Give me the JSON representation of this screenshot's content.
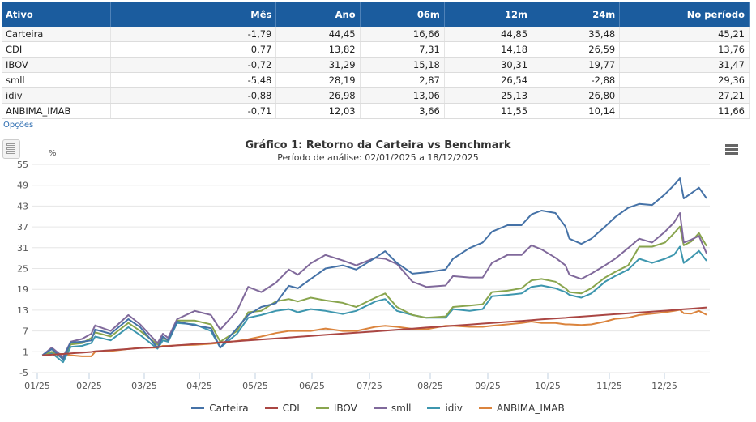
{
  "table": {
    "headers": [
      "Ativo",
      "Mês",
      "Ano",
      "06m",
      "12m",
      "24m",
      "No período"
    ],
    "rows": [
      [
        "Carteira",
        "-1,79",
        "44,45",
        "16,66",
        "44,85",
        "35,48",
        "45,21"
      ],
      [
        "CDI",
        "0,77",
        "13,82",
        "7,31",
        "14,18",
        "26,59",
        "13,76"
      ],
      [
        "IBOV",
        "-0,72",
        "31,29",
        "15,18",
        "30,31",
        "19,77",
        "31,47"
      ],
      [
        "smll",
        "-5,48",
        "28,19",
        "2,87",
        "26,54",
        "-2,88",
        "29,36"
      ],
      [
        "idiv",
        "-0,88",
        "26,98",
        "13,06",
        "25,13",
        "26,80",
        "27,21"
      ],
      [
        "ANBIMA_IMAB",
        "-0,71",
        "12,03",
        "3,66",
        "11,55",
        "10,14",
        "11,66"
      ]
    ]
  },
  "options_link": "Opções",
  "icons": {
    "legend_toggle": "list-icon",
    "menu": "hamburger-menu-icon"
  },
  "chart_data": {
    "type": "line",
    "title": "Gráfico 1: Retorno da Carteira vs Benchmark",
    "subtitle": "Período de análise: 02/01/2025 a 18/12/2025",
    "ylabel": "%",
    "ylim": [
      -5,
      55
    ],
    "yticks": [
      "55",
      "49",
      "43",
      "37",
      "31",
      "25",
      "19",
      "13",
      "7",
      "1",
      "-5"
    ],
    "xticks": [
      "01/25",
      "02/25",
      "03/25",
      "04/25",
      "05/25",
      "06/25",
      "07/25",
      "08/25",
      "09/25",
      "10/25",
      "11/25",
      "12/25"
    ],
    "grid": true,
    "legend": "bottom",
    "x": [
      "02/01",
      "07/01",
      "13/01",
      "17/01",
      "23/01",
      "28/01",
      "30/01",
      "07/02",
      "16/02",
      "22/02",
      "03/03",
      "06/03",
      "09/03",
      "14/03",
      "24/03",
      "02/04",
      "07/04",
      "16/04",
      "22/04",
      "29/04",
      "07/05",
      "14/05",
      "19/05",
      "26/05",
      "03/06",
      "12/06",
      "19/06",
      "29/06",
      "04/07",
      "10/07",
      "18/07",
      "25/07",
      "04/08",
      "08/08",
      "17/08",
      "24/08",
      "29/08",
      "06/09",
      "13/09",
      "18/09",
      "23/09",
      "30/09",
      "05/10",
      "07/10",
      "13/10",
      "18/10",
      "25/10",
      "30/10",
      "06/11",
      "12/11",
      "19/11",
      "26/11",
      "01/12",
      "04/12",
      "06/12",
      "10/12",
      "14/12",
      "18/12"
    ],
    "series": [
      {
        "name": "Carteira",
        "color": "#4572a7",
        "values": [
          0,
          1.8,
          -1.2,
          3.7,
          3.9,
          4.3,
          7.4,
          6.2,
          10.4,
          8.1,
          2.2,
          5.4,
          4.3,
          9.7,
          8.6,
          7.8,
          2.2,
          7.8,
          11.6,
          13.9,
          15,
          20,
          19.3,
          22,
          25,
          25.9,
          24.7,
          28.1,
          30,
          26.6,
          23.5,
          23.9,
          24.7,
          27.8,
          30.9,
          32.5,
          35.6,
          37.5,
          37.5,
          40.6,
          41.7,
          41,
          37.1,
          33.6,
          32.1,
          33.6,
          37.1,
          39.8,
          42.5,
          43.6,
          43.3,
          46.4,
          49.1,
          51,
          45.2,
          46.7,
          48.3,
          45.21
        ]
      },
      {
        "name": "CDI",
        "color": "#aa4643",
        "values": [
          0,
          0.17,
          0.38,
          0.53,
          0.75,
          0.95,
          1.13,
          1.45,
          1.8,
          2.05,
          2.34,
          2.5,
          2.62,
          2.84,
          3.22,
          3.5,
          3.72,
          4.05,
          4.29,
          4.55,
          4.84,
          5.12,
          5.29,
          5.55,
          5.89,
          6.22,
          6.5,
          6.89,
          7.09,
          7.34,
          7.67,
          7.97,
          8.34,
          8.51,
          8.84,
          9.12,
          9.29,
          9.62,
          9.89,
          10.12,
          10.34,
          10.62,
          10.79,
          10.89,
          11.13,
          11.34,
          11.63,
          11.84,
          12.09,
          12.34,
          12.59,
          12.84,
          13.04,
          13.18,
          13.26,
          13.43,
          13.59,
          13.76
        ]
      },
      {
        "name": "IBOV",
        "color": "#89a54e",
        "values": [
          0,
          1,
          -0.9,
          3.1,
          3.5,
          5,
          6.6,
          5.4,
          9.3,
          7,
          3.1,
          5,
          4.3,
          10,
          10,
          8.9,
          3.9,
          7,
          12.4,
          12.8,
          15.5,
          16.2,
          15.5,
          16.6,
          15.8,
          15.1,
          13.9,
          16.6,
          17.8,
          13.9,
          11.6,
          10.8,
          11.2,
          13.9,
          14.3,
          14.7,
          18.2,
          18.6,
          19.3,
          21.6,
          22,
          21.2,
          19.3,
          18.2,
          17.8,
          19.3,
          22.4,
          24,
          25.9,
          31.3,
          31.3,
          32.5,
          35.2,
          37.1,
          31.7,
          32.8,
          35.2,
          31.47
        ]
      },
      {
        "name": "smll",
        "color": "#80699b",
        "values": [
          0,
          2.2,
          -0.5,
          3.9,
          4.7,
          6.2,
          8.6,
          7,
          11.6,
          8.9,
          3.5,
          6.2,
          5,
          10.4,
          12.8,
          11.6,
          7.4,
          12.8,
          19.7,
          18.2,
          20.9,
          24.7,
          23.2,
          26.5,
          28.9,
          27.3,
          25.9,
          28.1,
          27.8,
          26.3,
          21.2,
          19.7,
          20.1,
          22.8,
          22.4,
          22.4,
          26.6,
          28.9,
          28.9,
          31.7,
          30.5,
          28.1,
          25.9,
          23.2,
          22,
          23.5,
          25.9,
          27.8,
          30.9,
          33.6,
          32.5,
          35.6,
          38.3,
          41,
          32.5,
          33.3,
          34.4,
          29.36
        ]
      },
      {
        "name": "idiv",
        "color": "#3d96ae",
        "values": [
          0,
          0.6,
          -2,
          2.4,
          2.7,
          3.5,
          5.4,
          4.3,
          8.1,
          5.8,
          1.9,
          4.3,
          3.9,
          9.3,
          8.9,
          7,
          2.2,
          6.2,
          10.8,
          11.6,
          12.8,
          13.3,
          12.4,
          13.3,
          12.8,
          11.9,
          12.8,
          15.5,
          16.2,
          12.8,
          11.6,
          10.8,
          10.8,
          13.3,
          12.8,
          13.3,
          17,
          17.4,
          17.8,
          19.7,
          20.1,
          19.3,
          18.2,
          17.4,
          16.6,
          17.8,
          21.2,
          22.8,
          24.7,
          27.8,
          26.6,
          27.8,
          29,
          31.3,
          26.6,
          28.2,
          30.1,
          27.21
        ]
      },
      {
        "name": "ANBIMA_IMAB",
        "color": "#db843d",
        "values": [
          0,
          0.6,
          0.3,
          0,
          -0.3,
          -0.3,
          1,
          1.2,
          1.8,
          2.2,
          2.2,
          2.7,
          2.7,
          2.9,
          3,
          3.3,
          3.6,
          4.1,
          4.6,
          5.4,
          6.4,
          7,
          7,
          7,
          7.7,
          7,
          7,
          8.2,
          8.5,
          8.2,
          7.6,
          7.5,
          8.5,
          8.5,
          8.2,
          8.2,
          8.5,
          8.9,
          9.3,
          9.7,
          9.3,
          9.3,
          8.9,
          8.9,
          8.7,
          8.9,
          9.7,
          10.5,
          10.8,
          11.6,
          12,
          12.4,
          12.8,
          13.1,
          12.1,
          12,
          12.8,
          11.66
        ]
      }
    ]
  }
}
